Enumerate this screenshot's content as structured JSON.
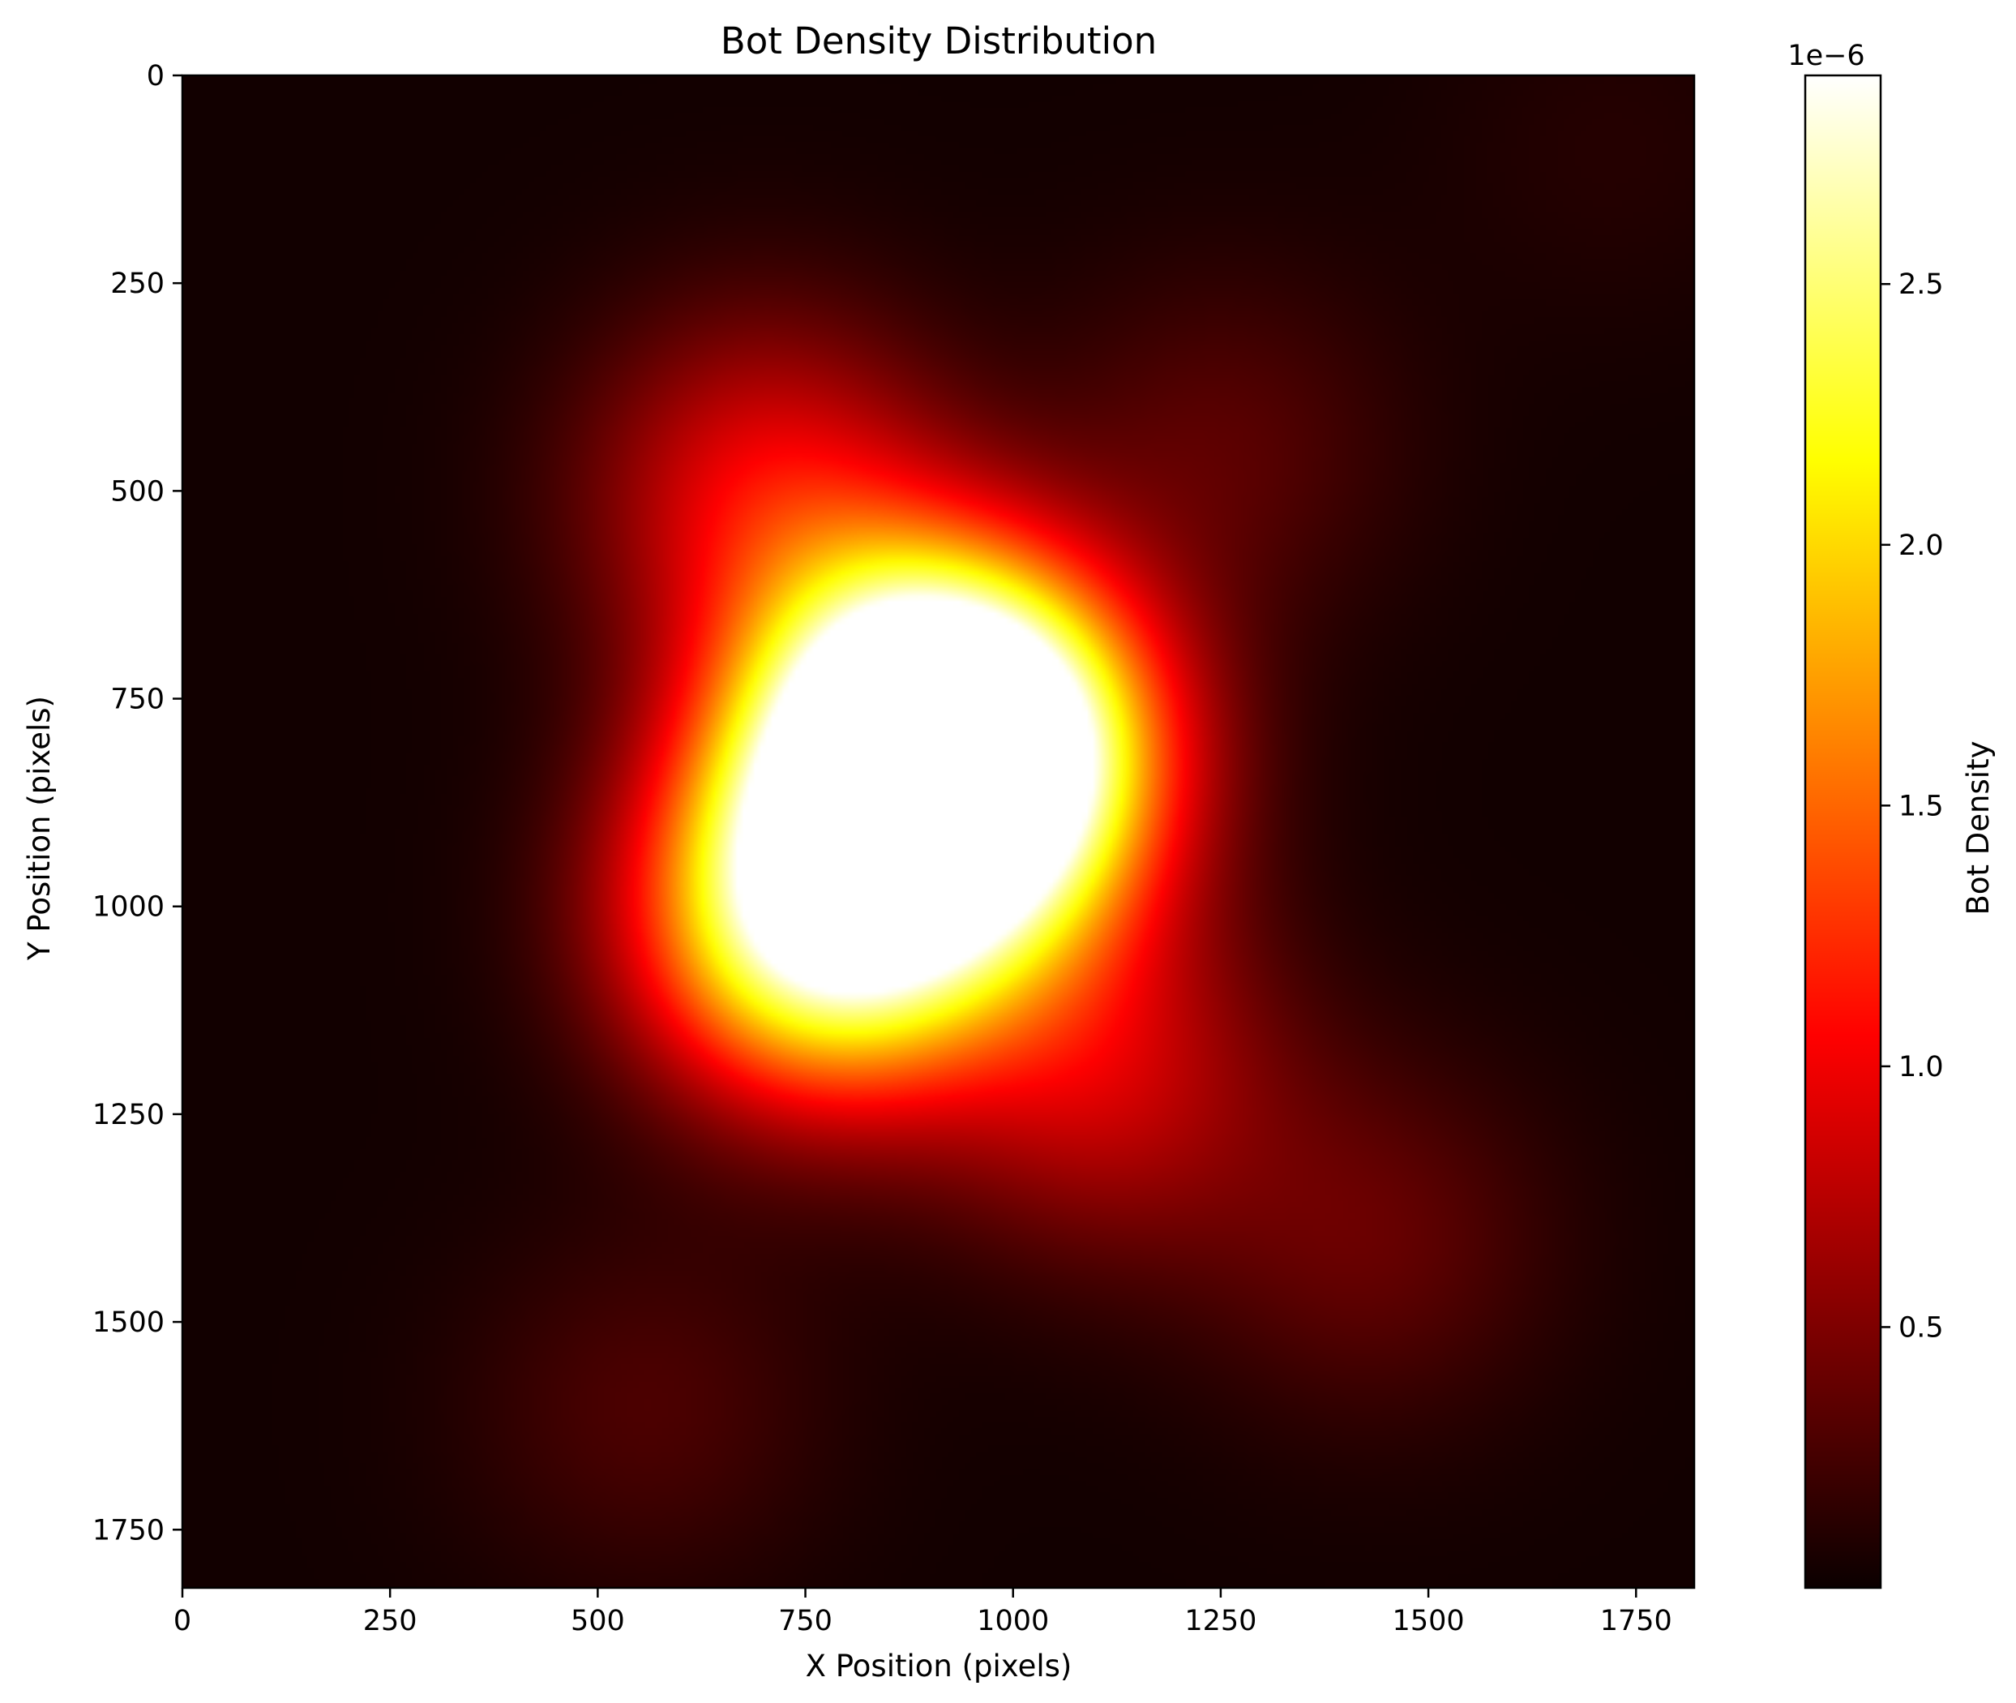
{
  "chart_data": {
    "type": "heatmap",
    "title": "Bot Density Distribution",
    "xlabel": "X Position (pixels)",
    "ylabel": "Y Position (pixels)",
    "xlim": [
      0,
      1820
    ],
    "ylim": [
      1820,
      0
    ],
    "x_ticks": [
      0,
      250,
      500,
      750,
      1000,
      1250,
      1500,
      1750
    ],
    "y_ticks": [
      0,
      250,
      500,
      750,
      1000,
      1250,
      1500,
      1750
    ],
    "colormap": "hot",
    "colorbar": {
      "label": "Bot Density",
      "offset_text": "1e−6",
      "range": [
        0.0,
        2.9
      ],
      "ticks": [
        0.5,
        1.0,
        1.5,
        2.0,
        2.5
      ],
      "tick_labels": [
        "0.5",
        "1.0",
        "1.5",
        "2.0",
        "2.5"
      ]
    },
    "hotspots": [
      {
        "x": 770,
        "y": 1010,
        "density": 2.85
      },
      {
        "x": 960,
        "y": 830,
        "density": 2.9
      },
      {
        "x": 880,
        "y": 780,
        "density": 2.4
      },
      {
        "x": 700,
        "y": 500,
        "density": 0.9
      },
      {
        "x": 1110,
        "y": 1200,
        "density": 0.75
      },
      {
        "x": 1430,
        "y": 1400,
        "density": 0.35
      },
      {
        "x": 1250,
        "y": 450,
        "density": 0.3
      },
      {
        "x": 560,
        "y": 1600,
        "density": 0.25
      },
      {
        "x": 1720,
        "y": 90,
        "density": 0.08
      }
    ],
    "grid": false,
    "legend": "none"
  }
}
